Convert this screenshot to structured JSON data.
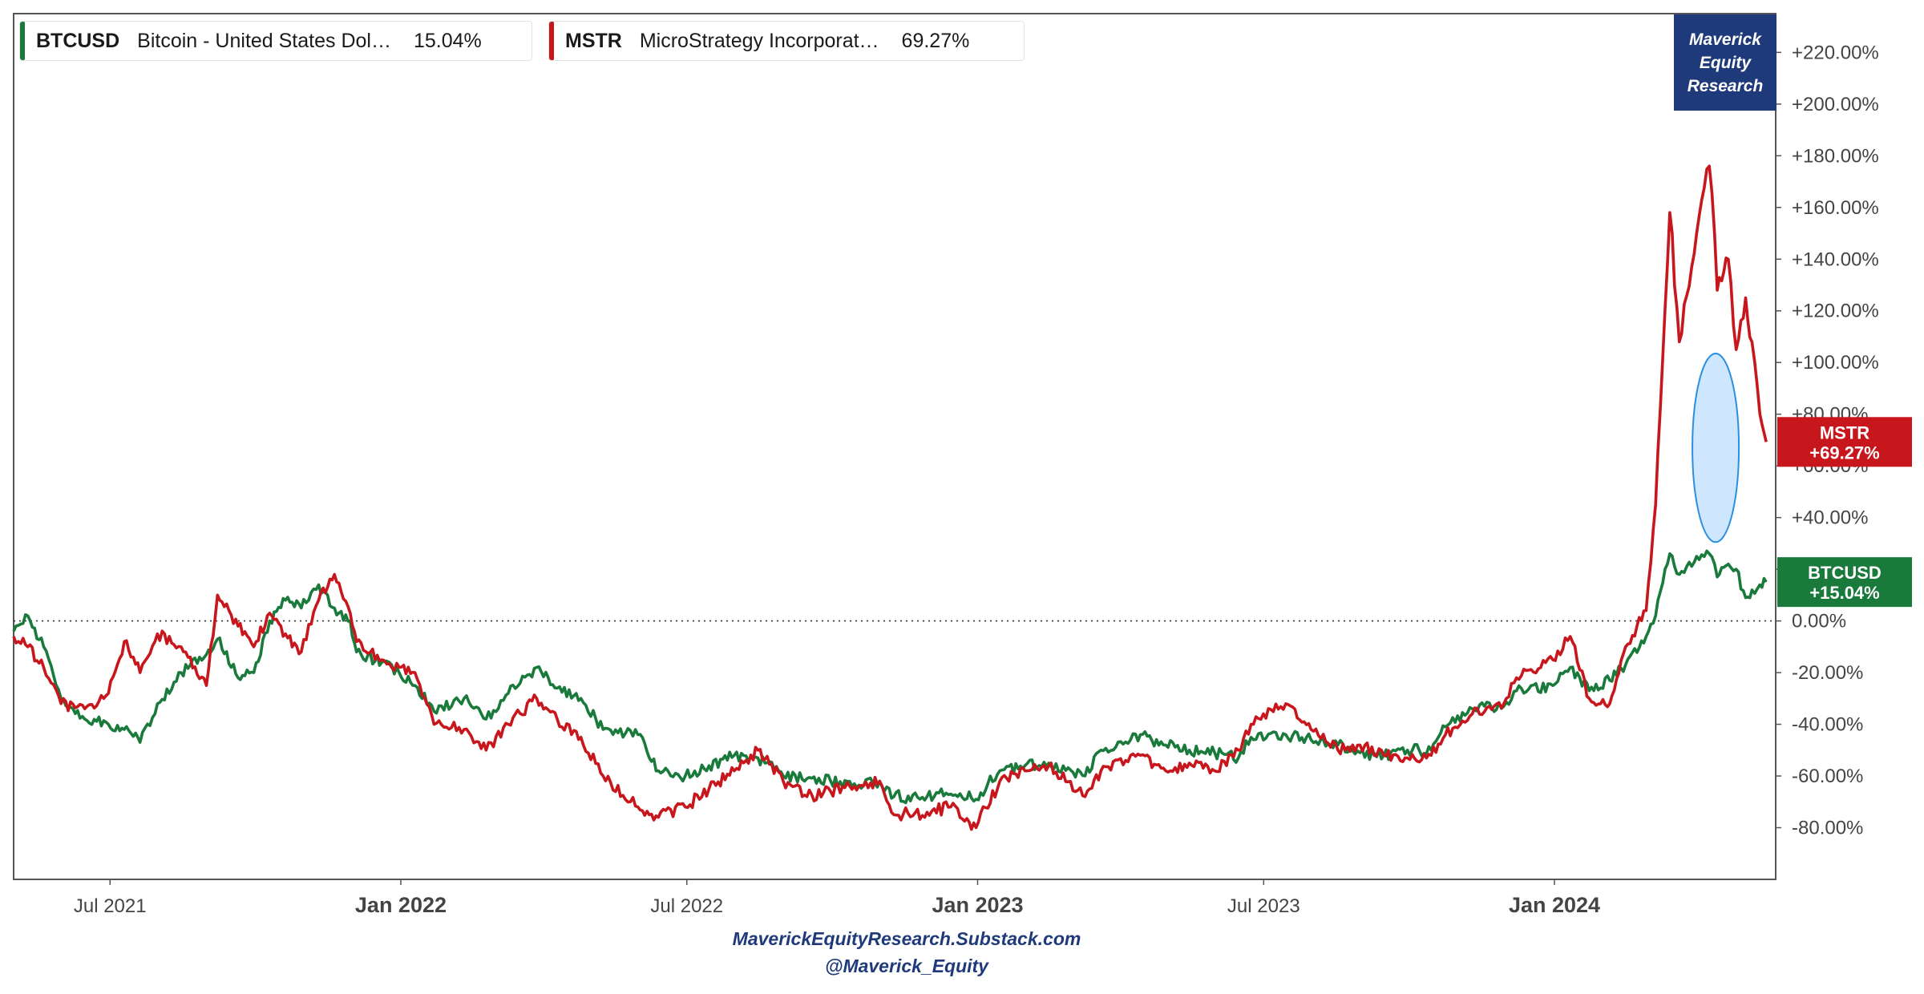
{
  "legend": [
    {
      "symbol": "BTCUSD",
      "description": "Bitcoin - United States Dol…",
      "value": "15.04%",
      "color": "#1a7a3c"
    },
    {
      "symbol": "MSTR",
      "description": "MicroStrategy Incorporat…",
      "value": "69.27%",
      "color": "#c8161d"
    }
  ],
  "brand": {
    "line1": "Maverick",
    "line2": "Equity",
    "line3": "Research"
  },
  "footer": {
    "line1": "MaverickEquityResearch.Substack.com",
    "line2": "@Maverick_Equity"
  },
  "chart_data": {
    "type": "line",
    "title": "",
    "xlabel": "",
    "ylabel": "",
    "x_range": [
      "2021-05-01",
      "2024-05-20"
    ],
    "ylim": [
      -100,
      235
    ],
    "y_ticks": [
      -80,
      -60,
      -40,
      -20,
      0,
      20,
      40,
      60,
      80,
      100,
      120,
      140,
      160,
      180,
      200,
      220
    ],
    "y_tick_labels": [
      "-80.00%",
      "-60.00%",
      "-40.00%",
      "-20.00%",
      "0.00%",
      "+20.00%",
      "+40.00%",
      "+60.00%",
      "+80.00%",
      "+100.00%",
      "+120.00%",
      "+140.00%",
      "+160.00%",
      "+180.00%",
      "+200.00%",
      "+220.00%"
    ],
    "x_ticks": [
      {
        "date": "2021-07-01",
        "label": "Jul 2021",
        "bold": false
      },
      {
        "date": "2022-01-01",
        "label": "Jan 2022",
        "bold": true
      },
      {
        "date": "2022-07-01",
        "label": "Jul 2022",
        "bold": false
      },
      {
        "date": "2023-01-01",
        "label": "Jan 2023",
        "bold": true
      },
      {
        "date": "2023-07-01",
        "label": "Jul 2023",
        "bold": false
      },
      {
        "date": "2024-01-01",
        "label": "Jan 2024",
        "bold": true
      }
    ],
    "grid": false,
    "zero_line": "dotted",
    "legend": "top-left",
    "series": [
      {
        "name": "BTCUSD",
        "color": "#1a7a3c",
        "last_label": "BTCUSD",
        "last_value_label": "+15.04%",
        "points": [
          [
            "2021-05-01",
            -4
          ],
          [
            "2021-05-10",
            2
          ],
          [
            "2021-05-20",
            -10
          ],
          [
            "2021-05-31",
            -30
          ],
          [
            "2021-06-15",
            -38
          ],
          [
            "2021-06-30",
            -40
          ],
          [
            "2021-07-10",
            -42
          ],
          [
            "2021-07-20",
            -47
          ],
          [
            "2021-07-31",
            -32
          ],
          [
            "2021-08-15",
            -20
          ],
          [
            "2021-08-31",
            -13
          ],
          [
            "2021-09-07",
            -7
          ],
          [
            "2021-09-20",
            -22
          ],
          [
            "2021-09-30",
            -20
          ],
          [
            "2021-10-10",
            0
          ],
          [
            "2021-10-20",
            8
          ],
          [
            "2021-10-30",
            5
          ],
          [
            "2021-11-10",
            14
          ],
          [
            "2021-11-20",
            5
          ],
          [
            "2021-11-30",
            0
          ],
          [
            "2021-12-04",
            -12
          ],
          [
            "2021-12-20",
            -16
          ],
          [
            "2021-12-31",
            -20
          ],
          [
            "2022-01-10",
            -25
          ],
          [
            "2022-01-22",
            -35
          ],
          [
            "2022-02-10",
            -30
          ],
          [
            "2022-02-24",
            -38
          ],
          [
            "2022-03-10",
            -28
          ],
          [
            "2022-03-28",
            -18
          ],
          [
            "2022-04-10",
            -26
          ],
          [
            "2022-04-25",
            -30
          ],
          [
            "2022-05-09",
            -42
          ],
          [
            "2022-05-31",
            -44
          ],
          [
            "2022-06-13",
            -58
          ],
          [
            "2022-06-30",
            -60
          ],
          [
            "2022-07-15",
            -56
          ],
          [
            "2022-07-31",
            -52
          ],
          [
            "2022-08-15",
            -53
          ],
          [
            "2022-08-31",
            -60
          ],
          [
            "2022-09-15",
            -61
          ],
          [
            "2022-09-30",
            -62
          ],
          [
            "2022-10-15",
            -63
          ],
          [
            "2022-10-31",
            -62
          ],
          [
            "2022-11-09",
            -68
          ],
          [
            "2022-11-30",
            -68
          ],
          [
            "2022-12-15",
            -67
          ],
          [
            "2022-12-31",
            -69
          ],
          [
            "2023-01-15",
            -58
          ],
          [
            "2023-01-31",
            -56
          ],
          [
            "2023-02-15",
            -55
          ],
          [
            "2023-03-10",
            -60
          ],
          [
            "2023-03-20",
            -50
          ],
          [
            "2023-04-14",
            -44
          ],
          [
            "2023-04-30",
            -48
          ],
          [
            "2023-05-15",
            -50
          ],
          [
            "2023-05-31",
            -51
          ],
          [
            "2023-06-15",
            -53
          ],
          [
            "2023-06-23",
            -45
          ],
          [
            "2023-07-15",
            -44
          ],
          [
            "2023-07-31",
            -46
          ],
          [
            "2023-08-17",
            -48
          ],
          [
            "2023-08-31",
            -51
          ],
          [
            "2023-09-15",
            -52
          ],
          [
            "2023-09-30",
            -50
          ],
          [
            "2023-10-15",
            -50
          ],
          [
            "2023-10-24",
            -41
          ],
          [
            "2023-11-10",
            -34
          ],
          [
            "2023-11-30",
            -33
          ],
          [
            "2023-12-08",
            -27
          ],
          [
            "2023-12-31",
            -25
          ],
          [
            "2024-01-11",
            -18
          ],
          [
            "2024-01-23",
            -27
          ],
          [
            "2024-02-05",
            -23
          ],
          [
            "2024-02-15",
            -17
          ],
          [
            "2024-02-28",
            -6
          ],
          [
            "2024-03-05",
            2
          ],
          [
            "2024-03-14",
            26
          ],
          [
            "2024-03-20",
            18
          ],
          [
            "2024-03-31",
            25
          ],
          [
            "2024-04-08",
            26
          ],
          [
            "2024-04-13",
            17
          ],
          [
            "2024-04-20",
            22
          ],
          [
            "2024-04-25",
            20
          ],
          [
            "2024-05-01",
            9
          ],
          [
            "2024-05-05",
            12
          ],
          [
            "2024-05-10",
            14
          ],
          [
            "2024-05-14",
            15.04
          ]
        ]
      },
      {
        "name": "MSTR",
        "color": "#c8161d",
        "last_label": "MSTR",
        "last_value_label": "+69.27%",
        "points": [
          [
            "2021-05-01",
            -6
          ],
          [
            "2021-05-10",
            -10
          ],
          [
            "2021-05-20",
            -18
          ],
          [
            "2021-05-31",
            -32
          ],
          [
            "2021-06-15",
            -34
          ],
          [
            "2021-06-30",
            -28
          ],
          [
            "2021-07-10",
            -8
          ],
          [
            "2021-07-20",
            -20
          ],
          [
            "2021-07-31",
            -5
          ],
          [
            "2021-08-15",
            -10
          ],
          [
            "2021-08-31",
            -25
          ],
          [
            "2021-09-07",
            10
          ],
          [
            "2021-09-20",
            -2
          ],
          [
            "2021-09-30",
            -10
          ],
          [
            "2021-10-10",
            3
          ],
          [
            "2021-10-20",
            -5
          ],
          [
            "2021-10-30",
            -12
          ],
          [
            "2021-11-10",
            8
          ],
          [
            "2021-11-20",
            18
          ],
          [
            "2021-11-30",
            3
          ],
          [
            "2021-12-04",
            -8
          ],
          [
            "2021-12-20",
            -15
          ],
          [
            "2021-12-31",
            -18
          ],
          [
            "2022-01-10",
            -20
          ],
          [
            "2022-01-22",
            -40
          ],
          [
            "2022-02-10",
            -42
          ],
          [
            "2022-02-24",
            -50
          ],
          [
            "2022-03-10",
            -40
          ],
          [
            "2022-03-28",
            -30
          ],
          [
            "2022-04-10",
            -38
          ],
          [
            "2022-04-25",
            -45
          ],
          [
            "2022-05-09",
            -60
          ],
          [
            "2022-05-31",
            -72
          ],
          [
            "2022-06-13",
            -76
          ],
          [
            "2022-06-30",
            -72
          ],
          [
            "2022-07-15",
            -65
          ],
          [
            "2022-07-31",
            -58
          ],
          [
            "2022-08-15",
            -50
          ],
          [
            "2022-08-31",
            -62
          ],
          [
            "2022-09-15",
            -68
          ],
          [
            "2022-09-30",
            -66
          ],
          [
            "2022-10-15",
            -64
          ],
          [
            "2022-10-31",
            -62
          ],
          [
            "2022-11-09",
            -75
          ],
          [
            "2022-11-30",
            -74
          ],
          [
            "2022-12-15",
            -72
          ],
          [
            "2022-12-31",
            -80
          ],
          [
            "2023-01-15",
            -62
          ],
          [
            "2023-01-31",
            -58
          ],
          [
            "2023-02-15",
            -56
          ],
          [
            "2023-03-10",
            -68
          ],
          [
            "2023-03-20",
            -58
          ],
          [
            "2023-04-14",
            -52
          ],
          [
            "2023-04-30",
            -58
          ],
          [
            "2023-05-15",
            -55
          ],
          [
            "2023-05-31",
            -58
          ],
          [
            "2023-06-15",
            -50
          ],
          [
            "2023-06-23",
            -40
          ],
          [
            "2023-07-15",
            -32
          ],
          [
            "2023-07-31",
            -42
          ],
          [
            "2023-08-17",
            -50
          ],
          [
            "2023-08-31",
            -48
          ],
          [
            "2023-09-15",
            -52
          ],
          [
            "2023-09-30",
            -53
          ],
          [
            "2023-10-15",
            -52
          ],
          [
            "2023-10-24",
            -44
          ],
          [
            "2023-11-10",
            -36
          ],
          [
            "2023-11-30",
            -32
          ],
          [
            "2023-12-08",
            -22
          ],
          [
            "2023-12-31",
            -15
          ],
          [
            "2024-01-11",
            -6
          ],
          [
            "2024-01-23",
            -30
          ],
          [
            "2024-02-05",
            -32
          ],
          [
            "2024-02-15",
            -10
          ],
          [
            "2024-02-28",
            4
          ],
          [
            "2024-03-05",
            45
          ],
          [
            "2024-03-14",
            158
          ],
          [
            "2024-03-20",
            108
          ],
          [
            "2024-03-31",
            150
          ],
          [
            "2024-04-08",
            176
          ],
          [
            "2024-04-13",
            128
          ],
          [
            "2024-04-20",
            140
          ],
          [
            "2024-04-25",
            105
          ],
          [
            "2024-05-01",
            125
          ],
          [
            "2024-05-05",
            108
          ],
          [
            "2024-05-10",
            80
          ],
          [
            "2024-05-14",
            69.27
          ]
        ]
      }
    ],
    "annotations": [
      {
        "type": "ellipse",
        "center_date": "2024-04-12",
        "center_value": 67,
        "value_span": 73,
        "fill": "#cfe6ff",
        "stroke": "#2b8fe0"
      }
    ]
  }
}
